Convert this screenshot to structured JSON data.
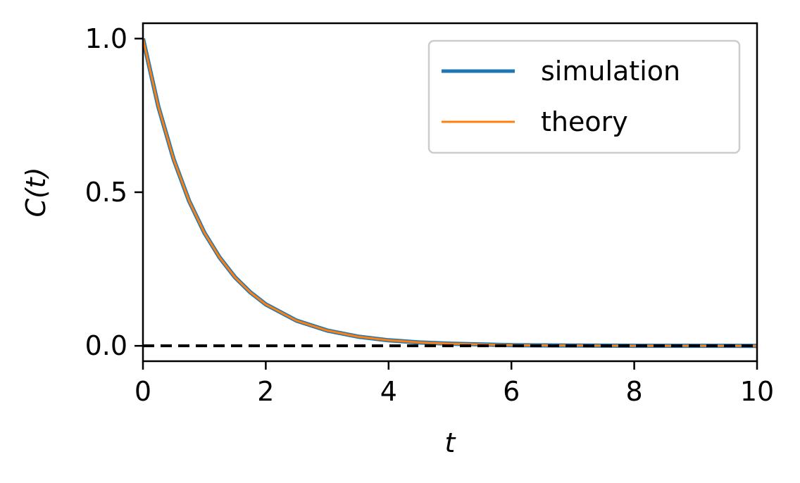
{
  "chart_data": {
    "type": "line",
    "title": "",
    "xlabel": "t",
    "ylabel": "C(t)",
    "xlim": [
      0,
      10
    ],
    "ylim": [
      -0.05,
      1.05
    ],
    "xticks": [
      0,
      2,
      4,
      6,
      8,
      10
    ],
    "xtick_labels": [
      "0",
      "2",
      "4",
      "6",
      "8",
      "10"
    ],
    "yticks": [
      0.0,
      0.5,
      1.0
    ],
    "ytick_labels": [
      "0.0",
      "0.5",
      "1.0"
    ],
    "grid": false,
    "legend_position": "top-right",
    "series": [
      {
        "name": "simulation",
        "color": "#1f77b4",
        "x": [
          0,
          0.25,
          0.5,
          0.75,
          1,
          1.25,
          1.5,
          1.75,
          2,
          2.5,
          3,
          3.5,
          4,
          4.5,
          5,
          6,
          7,
          8,
          9,
          10
        ],
        "y": [
          1.0,
          0.779,
          0.607,
          0.472,
          0.368,
          0.287,
          0.223,
          0.174,
          0.135,
          0.082,
          0.05,
          0.03,
          0.018,
          0.011,
          0.007,
          0.002,
          0.001,
          0.0003,
          0.0001,
          0.0
        ]
      },
      {
        "name": "theory",
        "color": "#ff7f0e",
        "x": [
          0,
          0.25,
          0.5,
          0.75,
          1,
          1.25,
          1.5,
          1.75,
          2,
          2.5,
          3,
          3.5,
          4,
          4.5,
          5,
          6,
          7,
          8,
          9,
          10
        ],
        "y": [
          1.0,
          0.779,
          0.607,
          0.472,
          0.368,
          0.287,
          0.223,
          0.174,
          0.135,
          0.082,
          0.05,
          0.03,
          0.018,
          0.011,
          0.007,
          0.002,
          0.001,
          0.0003,
          0.0001,
          0.0
        ]
      }
    ],
    "reference_line": {
      "y": 0.0,
      "style": "dashed",
      "color": "#000000"
    }
  }
}
